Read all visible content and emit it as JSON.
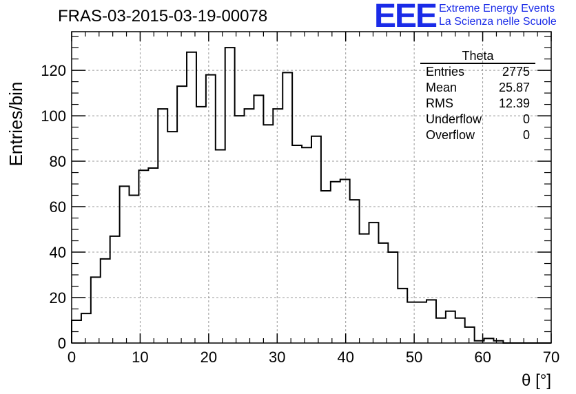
{
  "title": "FRAS-03-2015-03-19-00078",
  "logo": {
    "mark": "EEE",
    "line1": "Extreme Energy Events",
    "line2": "La Scienza nelle Scuole"
  },
  "stats": {
    "name": "Theta",
    "rows": [
      {
        "label": "Entries",
        "value": "2775"
      },
      {
        "label": "Mean",
        "value": "25.87"
      },
      {
        "label": "RMS",
        "value": "12.39"
      },
      {
        "label": "Underflow",
        "value": "0"
      },
      {
        "label": "Overflow",
        "value": "0"
      }
    ]
  },
  "chart_data": {
    "type": "histogram",
    "xlabel": "θ [°]",
    "ylabel": "Entries/bin",
    "xlim": [
      0,
      70
    ],
    "ylim": [
      0,
      137
    ],
    "x_ticks": [
      0,
      10,
      20,
      30,
      40,
      50,
      60,
      70
    ],
    "y_ticks": [
      0,
      20,
      40,
      60,
      80,
      100,
      120
    ],
    "grid": true,
    "bin_edges_start": 0,
    "bin_width": 1.4,
    "values": [
      10,
      13,
      29,
      37,
      47,
      69,
      65,
      76,
      77,
      103,
      93,
      113,
      128,
      104,
      118,
      85,
      130,
      100,
      103,
      109,
      96,
      103,
      119,
      87,
      86,
      91,
      67,
      71,
      72,
      63,
      48,
      53,
      44,
      40,
      24,
      18,
      18,
      19,
      11,
      14,
      11,
      7,
      1,
      2,
      1,
      0,
      0,
      0,
      0,
      0
    ]
  }
}
